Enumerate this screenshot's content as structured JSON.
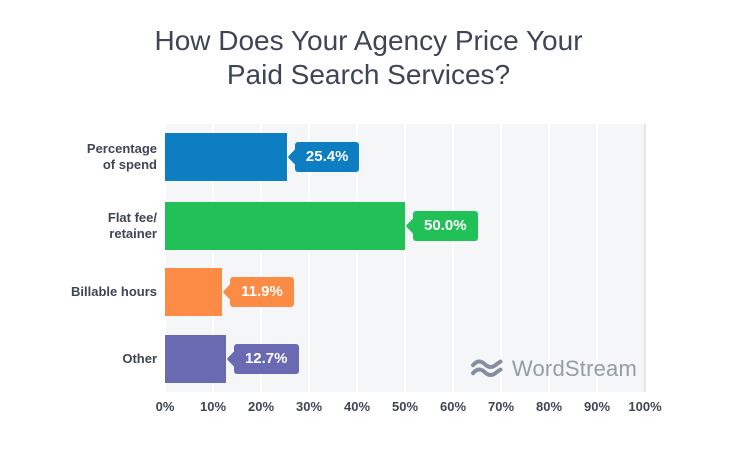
{
  "title": {
    "line1": "How Does Your Agency Price Your",
    "line2": "Paid Search Services?"
  },
  "chart_data": {
    "type": "bar",
    "orientation": "horizontal",
    "title": "How Does Your Agency Price Your Paid Search Services?",
    "categories": [
      "Percentage of spend",
      "Flat fee/retainer",
      "Billable hours",
      "Other"
    ],
    "values": [
      25.4,
      50.0,
      11.9,
      12.7
    ],
    "value_labels": [
      "25.4%",
      "50.0%",
      "11.9%",
      "12.7%"
    ],
    "bar_colors": [
      "#0e7ec2",
      "#21c158",
      "#fb8b45",
      "#6a6ab2"
    ],
    "xlabel": "",
    "ylabel": "",
    "xlim": [
      0,
      100
    ],
    "x_ticks": [
      "0%",
      "10%",
      "20%",
      "30%",
      "40%",
      "50%",
      "60%",
      "70%",
      "80%",
      "90%",
      "100%"
    ],
    "grid": true,
    "legend": false
  },
  "rows": [
    {
      "label": "Percentage\nof spend"
    },
    {
      "label": "Flat fee/\nretainer"
    },
    {
      "label": "Billable hours"
    },
    {
      "label": "Other"
    }
  ],
  "watermark": {
    "name": "WordStream",
    "icon": "waves-icon"
  },
  "colors": {
    "blue": "#0e7ec2",
    "green": "#21c158",
    "orange": "#fb8b45",
    "purple": "#6a6ab2",
    "plot_background": "#f5f6f7",
    "gridline": "#ffffff",
    "text": "#3e4554",
    "logo_gray": "#949caa"
  }
}
